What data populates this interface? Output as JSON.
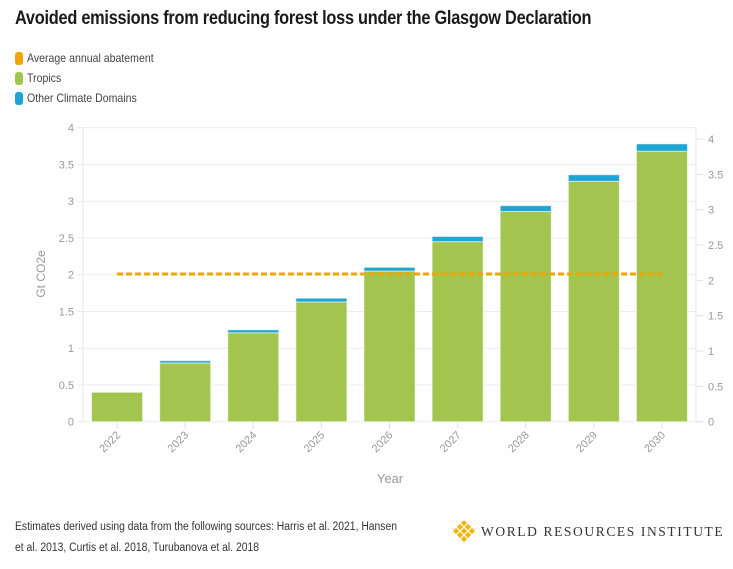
{
  "chart_data": {
    "type": "bar",
    "stacked": true,
    "title": "Avoided emissions from reducing forest loss under the Glasgow Declaration",
    "xlabel": "Year",
    "ylabel": "Gt CO2e",
    "categories": [
      "2022",
      "2023",
      "2024",
      "2025",
      "2026",
      "2027",
      "2028",
      "2029",
      "2030"
    ],
    "series": [
      {
        "name": "Tropics",
        "color": "#a3c44f",
        "values": [
          0.4,
          0.8,
          1.21,
          1.63,
          2.05,
          2.45,
          2.86,
          3.27,
          3.68
        ]
      },
      {
        "name": "Other Climate Domains",
        "color": "#1fa5d4",
        "values": [
          0.0,
          0.03,
          0.04,
          0.05,
          0.05,
          0.07,
          0.08,
          0.09,
          0.1
        ]
      }
    ],
    "line_series": {
      "name": "Average annual abatement",
      "color": "#f0a500",
      "style": "dashed",
      "value": 2.09,
      "axis": "right"
    },
    "ylim": [
      0,
      4
    ],
    "yticks": [
      "0",
      "0.5",
      "1",
      "1.5",
      "2",
      "2.5",
      "3",
      "3.5",
      "4"
    ],
    "ylim_right": [
      0,
      4.17
    ],
    "yticks_right": [
      "0",
      "0.5",
      "1",
      "1.5",
      "2",
      "2.5",
      "3",
      "3.5",
      "4"
    ],
    "grid": true,
    "legend_position": "top-left"
  },
  "legend": [
    {
      "label": "Average annual abatement",
      "color": "#f0a500"
    },
    {
      "label": "Tropics",
      "color": "#a3c44f"
    },
    {
      "label": "Other Climate Domains",
      "color": "#1fa5d4"
    }
  ],
  "footer": {
    "source": "Estimates derived using data from the following sources: Harris et al. 2021, Hansen et al. 2013, Curtis et al. 2018, Turubanova et al. 2018",
    "logo_text": "WORLD RESOURCES INSTITUTE",
    "logo_color": "#f4b400"
  }
}
